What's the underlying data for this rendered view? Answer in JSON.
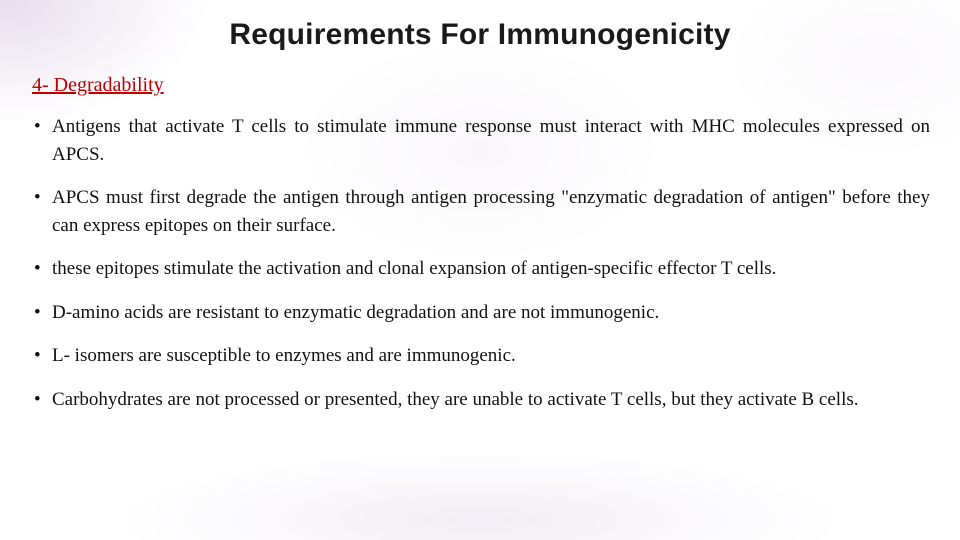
{
  "slide": {
    "title": "Requirements For Immunogenicity",
    "subhead": "4- Degradability",
    "bullets": [
      "Antigens that activate T cells to stimulate immune response must interact with MHC molecules expressed on APCS.",
      "APCS must first degrade the antigen through antigen processing \"enzymatic degradation of antigen\" before they can express epitopes on their surface.",
      "these epitopes stimulate the activation and clonal expansion of antigen-specific effector T cells.",
      "D-amino acids are resistant to enzymatic degradation and are not immunogenic.",
      "L- isomers are susceptible to enzymes and are immunogenic.",
      "Carbohydrates are not processed or presented, they are unable to activate T cells, but they activate B cells."
    ],
    "colors": {
      "title": "#1a1a1a",
      "subhead": "#c00000",
      "body": "#111111",
      "background": "#ffffff"
    },
    "fonts": {
      "title_family": "Arial",
      "title_size_pt": 30,
      "title_weight": "bold",
      "subhead_size_pt": 20,
      "body_family": "Times New Roman",
      "body_size_pt": 19
    }
  }
}
